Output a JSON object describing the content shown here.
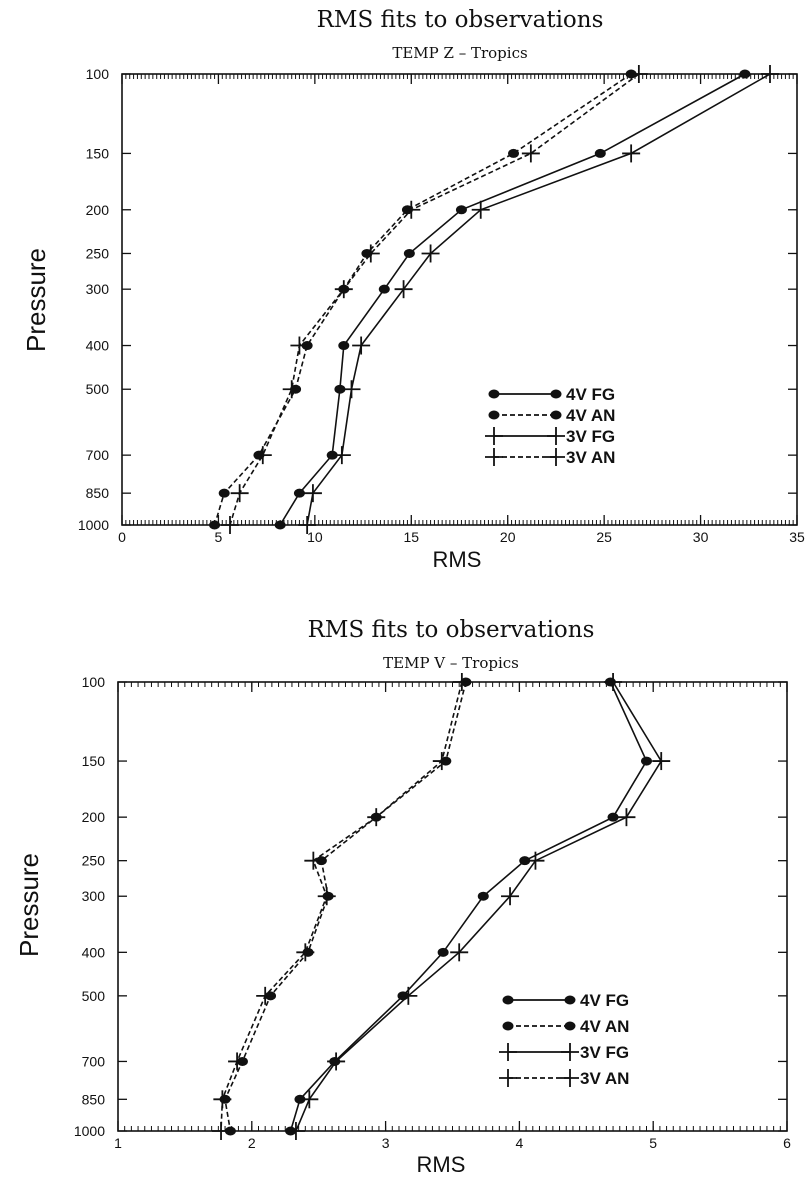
{
  "chart_data": [
    {
      "type": "line",
      "title": "RMS fits to observations",
      "subtitle": "TEMP Z – Tropics",
      "xlabel": "RMS",
      "ylabel": "Pressure",
      "xlim": [
        0,
        35
      ],
      "x_ticks": [
        "0",
        "5",
        "10",
        "15",
        "20",
        "25",
        "30",
        "35"
      ],
      "y_ticks": [
        "100",
        "150",
        "200",
        "250",
        "300",
        "400",
        "500",
        "700",
        "850",
        "1000"
      ],
      "y_scale": "log",
      "y_inverted": true,
      "legend_position": "bottom-right",
      "pressure_levels": [
        100,
        150,
        200,
        250,
        300,
        400,
        500,
        700,
        850,
        1000
      ],
      "series": [
        {
          "name": "4V FG",
          "marker": "dot",
          "linestyle": "solid",
          "values": [
            32.3,
            24.8,
            17.6,
            14.9,
            13.6,
            11.5,
            11.3,
            10.9,
            9.2,
            8.2
          ]
        },
        {
          "name": "4V AN",
          "marker": "dot",
          "linestyle": "dashed",
          "values": [
            26.4,
            20.3,
            14.8,
            12.7,
            11.5,
            9.6,
            9.0,
            7.1,
            5.3,
            4.8
          ]
        },
        {
          "name": "3V FG",
          "marker": "plus",
          "linestyle": "solid",
          "values": [
            33.6,
            26.4,
            18.6,
            16.0,
            14.6,
            12.4,
            11.9,
            11.4,
            9.9,
            9.6
          ]
        },
        {
          "name": "3V AN",
          "marker": "plus",
          "linestyle": "dashed",
          "values": [
            26.8,
            21.2,
            15.0,
            12.9,
            11.5,
            9.2,
            8.8,
            7.3,
            6.1,
            5.6
          ]
        }
      ]
    },
    {
      "type": "line",
      "title": "RMS fits to observations",
      "subtitle": "TEMP V – Tropics",
      "xlabel": "RMS",
      "ylabel": "Pressure",
      "xlim": [
        1,
        6
      ],
      "x_ticks": [
        "1",
        "2",
        "3",
        "4",
        "5",
        "6"
      ],
      "y_ticks": [
        "100",
        "150",
        "200",
        "250",
        "300",
        "400",
        "500",
        "700",
        "850",
        "1000"
      ],
      "y_scale": "log",
      "y_inverted": true,
      "legend_position": "bottom-right",
      "pressure_levels": [
        100,
        150,
        200,
        250,
        300,
        400,
        500,
        700,
        850,
        1000
      ],
      "series": [
        {
          "name": "4V FG",
          "marker": "dot",
          "linestyle": "solid",
          "values": [
            4.68,
            4.95,
            4.7,
            4.04,
            3.73,
            3.43,
            3.13,
            2.62,
            2.36,
            2.29
          ]
        },
        {
          "name": "4V AN",
          "marker": "dot",
          "linestyle": "dashed",
          "values": [
            3.6,
            3.45,
            2.93,
            2.52,
            2.57,
            2.42,
            2.14,
            1.93,
            1.8,
            1.84
          ]
        },
        {
          "name": "3V FG",
          "marker": "plus",
          "linestyle": "solid",
          "values": [
            4.7,
            5.06,
            4.8,
            4.12,
            3.93,
            3.55,
            3.17,
            2.63,
            2.43,
            2.33
          ]
        },
        {
          "name": "3V AN",
          "marker": "plus",
          "linestyle": "dashed",
          "values": [
            3.57,
            3.42,
            2.93,
            2.46,
            2.56,
            2.4,
            2.1,
            1.89,
            1.78,
            1.77
          ]
        }
      ]
    }
  ]
}
